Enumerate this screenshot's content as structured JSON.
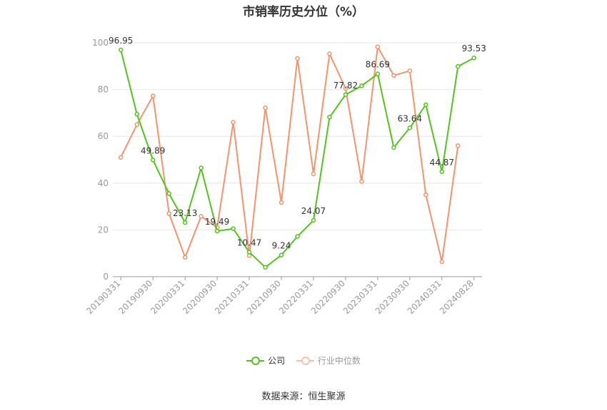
{
  "chart_data": {
    "type": "line",
    "title": "市销率历史分位（%）",
    "x": [
      "20190331",
      "20190630",
      "20190930",
      "20191231",
      "20200331",
      "20200630",
      "20200930",
      "20201231",
      "20210331",
      "20210630",
      "20210930",
      "20211231",
      "20220331",
      "20220630",
      "20220930",
      "20221231",
      "20230331",
      "20230630",
      "20230930",
      "20231231",
      "20240331",
      "20240630",
      "20240828"
    ],
    "x_tick_labels": [
      "20190331",
      "20190930",
      "20200331",
      "20200930",
      "20210331",
      "20210930",
      "20220331",
      "20220930",
      "20230331",
      "20230930",
      "20240331",
      "20240828"
    ],
    "ylim": [
      0,
      100
    ],
    "y_ticks": [
      0,
      20,
      40,
      60,
      80,
      100
    ],
    "grid": true,
    "legend_position": "bottom",
    "series": [
      {
        "name": "公司",
        "color": "#52c41a",
        "values": [
          96.95,
          69.5,
          49.89,
          35.5,
          23.13,
          46.5,
          19.49,
          20.5,
          10.47,
          4.0,
          9.24,
          17.2,
          24.07,
          68.2,
          77.82,
          81.6,
          86.69,
          55.2,
          63.64,
          73.5,
          44.87,
          89.9,
          93.53
        ],
        "labels": {
          "0": "96.95",
          "2": "49.89",
          "4": "23.13",
          "6": "19.49",
          "8": "10.47",
          "10": "9.24",
          "12": "24.07",
          "14": "77.82",
          "16": "86.69",
          "18": "63.64",
          "20": "44.87",
          "22": "93.53"
        }
      },
      {
        "name": "行业中位数",
        "color": "#f5936b",
        "values": [
          51.0,
          65.0,
          77.3,
          27.0,
          8.3,
          25.8,
          21.0,
          66.0,
          9.0,
          72.2,
          31.7,
          93.3,
          44.0,
          95.3,
          80.5,
          40.7,
          98.3,
          86.0,
          88.0,
          35.0,
          6.4,
          56.0,
          null
        ]
      }
    ]
  },
  "legend": {
    "company": "公司",
    "industry": "行业中位数"
  },
  "source": "数据来源：恒生聚源"
}
